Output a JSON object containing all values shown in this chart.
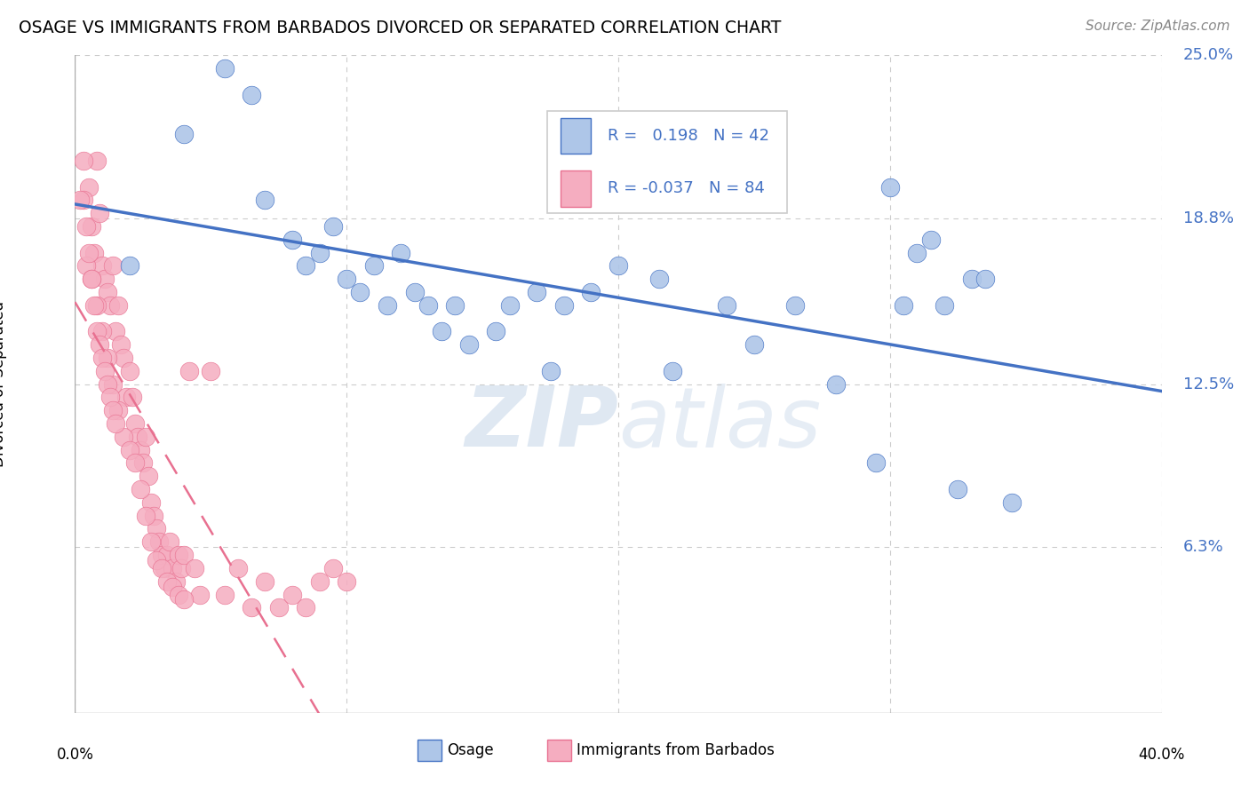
{
  "title": "OSAGE VS IMMIGRANTS FROM BARBADOS DIVORCED OR SEPARATED CORRELATION CHART",
  "source": "Source: ZipAtlas.com",
  "ylabel": "Divorced or Separated",
  "xlim": [
    0.0,
    0.4
  ],
  "ylim": [
    0.0,
    0.25
  ],
  "ytick_labels_right": [
    "25.0%",
    "18.8%",
    "12.5%",
    "6.3%"
  ],
  "ytick_values_right": [
    0.25,
    0.188,
    0.125,
    0.063
  ],
  "grid_color": "#cccccc",
  "watermark": "ZIPatlas",
  "osage_color": "#aec6e8",
  "barbados_color": "#f5adc0",
  "line_osage_color": "#4472c4",
  "line_barbados_color": "#e87090",
  "osage_x": [
    0.02,
    0.04,
    0.055,
    0.065,
    0.07,
    0.08,
    0.085,
    0.09,
    0.095,
    0.1,
    0.105,
    0.11,
    0.115,
    0.12,
    0.125,
    0.13,
    0.135,
    0.14,
    0.145,
    0.155,
    0.16,
    0.17,
    0.175,
    0.18,
    0.19,
    0.2,
    0.215,
    0.22,
    0.24,
    0.25,
    0.265,
    0.28,
    0.295,
    0.305,
    0.315,
    0.325,
    0.33,
    0.345,
    0.3,
    0.31,
    0.32,
    0.335
  ],
  "osage_y": [
    0.17,
    0.22,
    0.245,
    0.235,
    0.195,
    0.18,
    0.17,
    0.175,
    0.185,
    0.165,
    0.16,
    0.17,
    0.155,
    0.175,
    0.16,
    0.155,
    0.145,
    0.155,
    0.14,
    0.145,
    0.155,
    0.16,
    0.13,
    0.155,
    0.16,
    0.17,
    0.165,
    0.13,
    0.155,
    0.14,
    0.155,
    0.125,
    0.095,
    0.155,
    0.18,
    0.085,
    0.165,
    0.08,
    0.2,
    0.175,
    0.155,
    0.165
  ],
  "barbados_x": [
    0.005,
    0.006,
    0.007,
    0.008,
    0.009,
    0.01,
    0.011,
    0.012,
    0.013,
    0.014,
    0.015,
    0.016,
    0.017,
    0.018,
    0.019,
    0.02,
    0.021,
    0.022,
    0.023,
    0.024,
    0.025,
    0.026,
    0.027,
    0.028,
    0.029,
    0.03,
    0.031,
    0.032,
    0.033,
    0.034,
    0.035,
    0.036,
    0.037,
    0.038,
    0.039,
    0.04,
    0.042,
    0.044,
    0.046,
    0.05,
    0.055,
    0.06,
    0.065,
    0.07,
    0.075,
    0.08,
    0.085,
    0.09,
    0.095,
    0.1,
    0.003,
    0.004,
    0.006,
    0.008,
    0.01,
    0.012,
    0.014,
    0.016,
    0.018,
    0.02,
    0.022,
    0.024,
    0.026,
    0.028,
    0.03,
    0.032,
    0.034,
    0.036,
    0.038,
    0.04,
    0.002,
    0.003,
    0.004,
    0.005,
    0.006,
    0.007,
    0.008,
    0.009,
    0.01,
    0.011,
    0.012,
    0.013,
    0.014,
    0.015
  ],
  "barbados_y": [
    0.2,
    0.185,
    0.175,
    0.21,
    0.19,
    0.17,
    0.165,
    0.16,
    0.155,
    0.17,
    0.145,
    0.155,
    0.14,
    0.135,
    0.12,
    0.13,
    0.12,
    0.11,
    0.105,
    0.1,
    0.095,
    0.105,
    0.09,
    0.08,
    0.075,
    0.07,
    0.065,
    0.06,
    0.055,
    0.06,
    0.065,
    0.055,
    0.05,
    0.06,
    0.055,
    0.06,
    0.13,
    0.055,
    0.045,
    0.13,
    0.045,
    0.055,
    0.04,
    0.05,
    0.04,
    0.045,
    0.04,
    0.05,
    0.055,
    0.05,
    0.195,
    0.17,
    0.165,
    0.155,
    0.145,
    0.135,
    0.125,
    0.115,
    0.105,
    0.1,
    0.095,
    0.085,
    0.075,
    0.065,
    0.058,
    0.055,
    0.05,
    0.048,
    0.045,
    0.043,
    0.195,
    0.21,
    0.185,
    0.175,
    0.165,
    0.155,
    0.145,
    0.14,
    0.135,
    0.13,
    0.125,
    0.12,
    0.115,
    0.11
  ]
}
